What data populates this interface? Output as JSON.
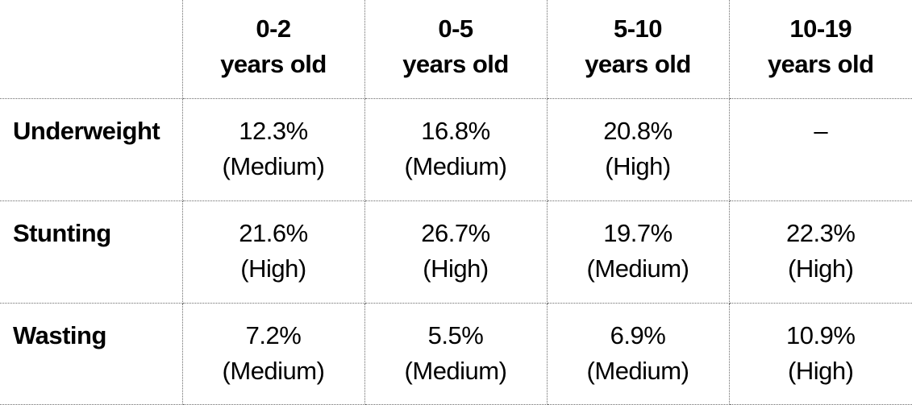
{
  "table": {
    "columns": [
      {
        "line1": "0-2",
        "line2": "years old"
      },
      {
        "line1": "0-5",
        "line2": "years old"
      },
      {
        "line1": "5-10",
        "line2": "years old"
      },
      {
        "line1": "10-19",
        "line2": "years old"
      }
    ],
    "rows": [
      {
        "label": "Underweight",
        "cells": [
          {
            "value": "12.3%",
            "level": "(Medium)"
          },
          {
            "value": "16.8%",
            "level": "(Medium)"
          },
          {
            "value": "20.8%",
            "level": "(High)"
          },
          {
            "value": "–",
            "level": ""
          }
        ]
      },
      {
        "label": "Stunting",
        "cells": [
          {
            "value": "21.6%",
            "level": "(High)"
          },
          {
            "value": "26.7%",
            "level": "(High)"
          },
          {
            "value": "19.7%",
            "level": "(Medium)"
          },
          {
            "value": "22.3%",
            "level": "(High)"
          }
        ]
      },
      {
        "label": "Wasting",
        "cells": [
          {
            "value": "7.2%",
            "level": "(Medium)"
          },
          {
            "value": "5.5%",
            "level": "(Medium)"
          },
          {
            "value": "6.9%",
            "level": "(Medium)"
          },
          {
            "value": "10.9%",
            "level": "(High)"
          }
        ]
      }
    ]
  }
}
